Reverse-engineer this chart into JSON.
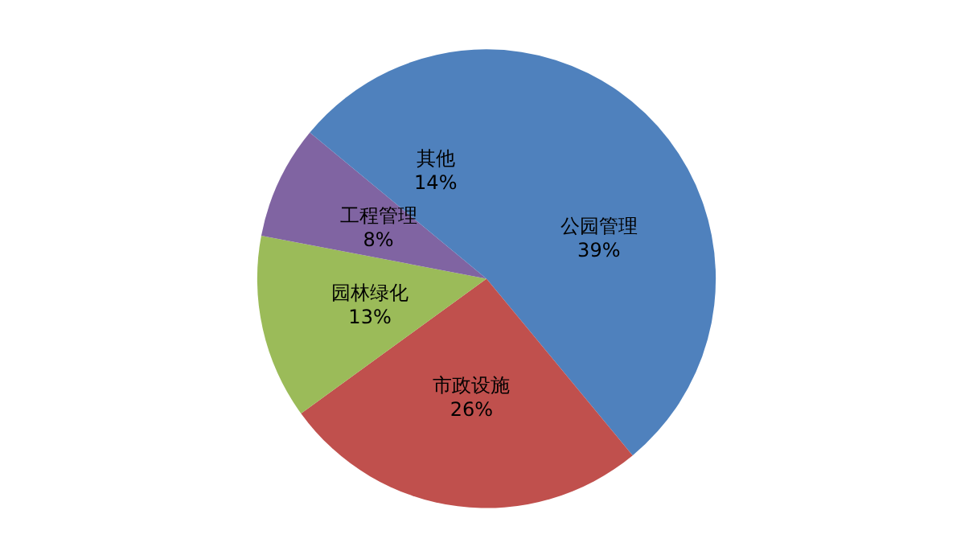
{
  "chart_data": {
    "type": "pie",
    "categories": [
      "公园管理",
      "市政设施",
      "园林绿化",
      "工程管理",
      "其他"
    ],
    "values": [
      39,
      26,
      13,
      8,
      14
    ],
    "value_labels": [
      "39%",
      "26%",
      "13%",
      "8%",
      "14%"
    ],
    "colors": [
      "#4f81bd",
      "#c0504d",
      "#9bbb59",
      "#8064a2",
      "#4f81bd"
    ],
    "legend": false
  }
}
